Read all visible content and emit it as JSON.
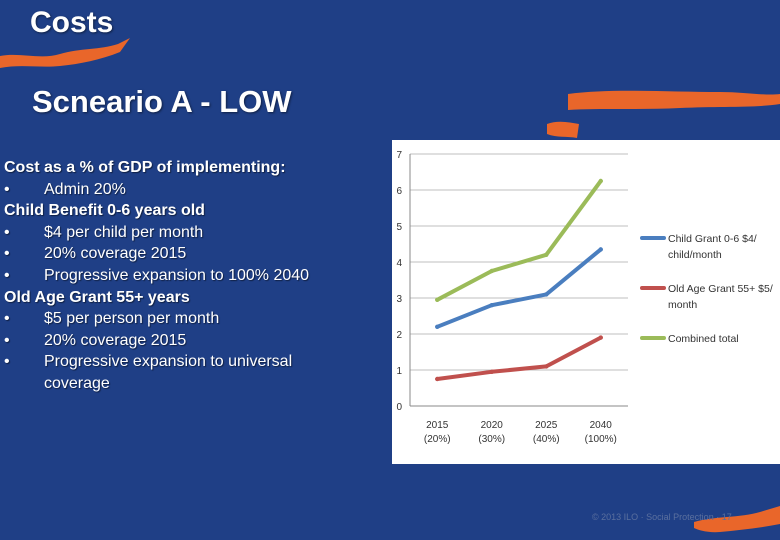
{
  "slide": {
    "title": "Costs",
    "subtitle": "Scneario A - LOW",
    "body": [
      {
        "kind": "heading",
        "text": "Cost as a % of GDP of implementing:"
      },
      {
        "kind": "bullet",
        "text": "Admin 20%"
      },
      {
        "kind": "heading",
        "text": "Child Benefit 0-6 years old"
      },
      {
        "kind": "bullet",
        "text": "$4 per child per month"
      },
      {
        "kind": "bullet",
        "text": "20% coverage 2015"
      },
      {
        "kind": "bullet",
        "text": "Progressive expansion to 100% 2040"
      },
      {
        "kind": "heading",
        "text": "Old Age Grant 55+ years"
      },
      {
        "kind": "bullet",
        "text": "$5 per person per month"
      },
      {
        "kind": "bullet",
        "text": "20% coverage 2015"
      },
      {
        "kind": "bullet",
        "text": "Progressive expansion to universal coverage"
      }
    ],
    "bullet_char": "•",
    "footer": "© 2013 ILO · Social Protection · 17"
  },
  "colors": {
    "background": "#1f3f86",
    "accent": "#e9662a",
    "child_series": "#4a7ebf",
    "old_age_series": "#c0504d",
    "combined_series": "#9bbb59"
  },
  "chart_data": {
    "type": "line",
    "title": "",
    "xlabel": "",
    "ylabel": "",
    "ylim": [
      0,
      7
    ],
    "yticks": [
      0,
      1,
      2,
      3,
      4,
      5,
      6,
      7
    ],
    "grid": true,
    "legend_position": "right",
    "categories": [
      {
        "year": "2015",
        "coverage": "(20%)"
      },
      {
        "year": "2020",
        "coverage": "(30%)"
      },
      {
        "year": "2025",
        "coverage": "(40%)"
      },
      {
        "year": "2040",
        "coverage": "(100%)"
      }
    ],
    "series": [
      {
        "name": "Child Grant 0-6 $4/ child/month",
        "legend_lines": [
          "Child Grant 0-6 $4/",
          "child/month"
        ],
        "color": "#4a7ebf",
        "values": [
          2.2,
          2.8,
          3.1,
          4.35
        ]
      },
      {
        "name": "Old Age Grant 55+ $5/ month",
        "legend_lines": [
          "Old Age Grant 55+ $5/",
          "month"
        ],
        "color": "#c0504d",
        "values": [
          0.75,
          0.95,
          1.1,
          1.9
        ]
      },
      {
        "name": "Combined total",
        "legend_lines": [
          "Combined total"
        ],
        "color": "#9bbb59",
        "values": [
          2.95,
          3.75,
          4.2,
          6.25
        ]
      }
    ]
  }
}
